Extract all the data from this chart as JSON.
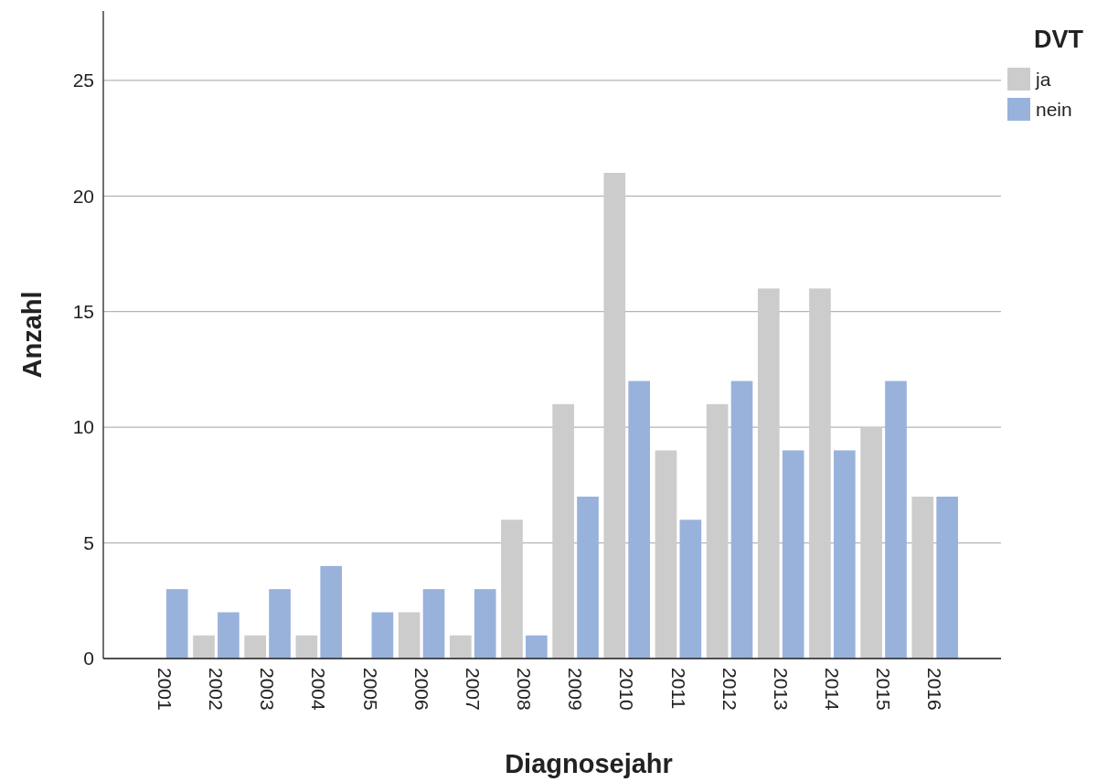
{
  "chart_data": {
    "type": "bar",
    "xlabel": "Diagnosejahr",
    "ylabel": "Anzahl",
    "legend_title": "DVT",
    "categories": [
      "2001",
      "2002",
      "2003",
      "2004",
      "2005",
      "2006",
      "2007",
      "2008",
      "2009",
      "2010",
      "2011",
      "2012",
      "2013",
      "2014",
      "2015",
      "2016"
    ],
    "series": [
      {
        "name": "ja",
        "color": "#cccccc",
        "values": [
          0,
          1,
          1,
          1,
          0,
          2,
          1,
          6,
          11,
          21,
          9,
          11,
          16,
          16,
          10,
          7
        ]
      },
      {
        "name": "nein",
        "color": "#98b2dc",
        "values": [
          3,
          2,
          3,
          4,
          2,
          3,
          3,
          1,
          7,
          12,
          6,
          12,
          9,
          9,
          12,
          7
        ]
      }
    ],
    "ylim": [
      0,
      28
    ],
    "yticks": [
      0,
      5,
      10,
      15,
      20,
      25
    ],
    "grid": "y",
    "legend": "top right"
  }
}
